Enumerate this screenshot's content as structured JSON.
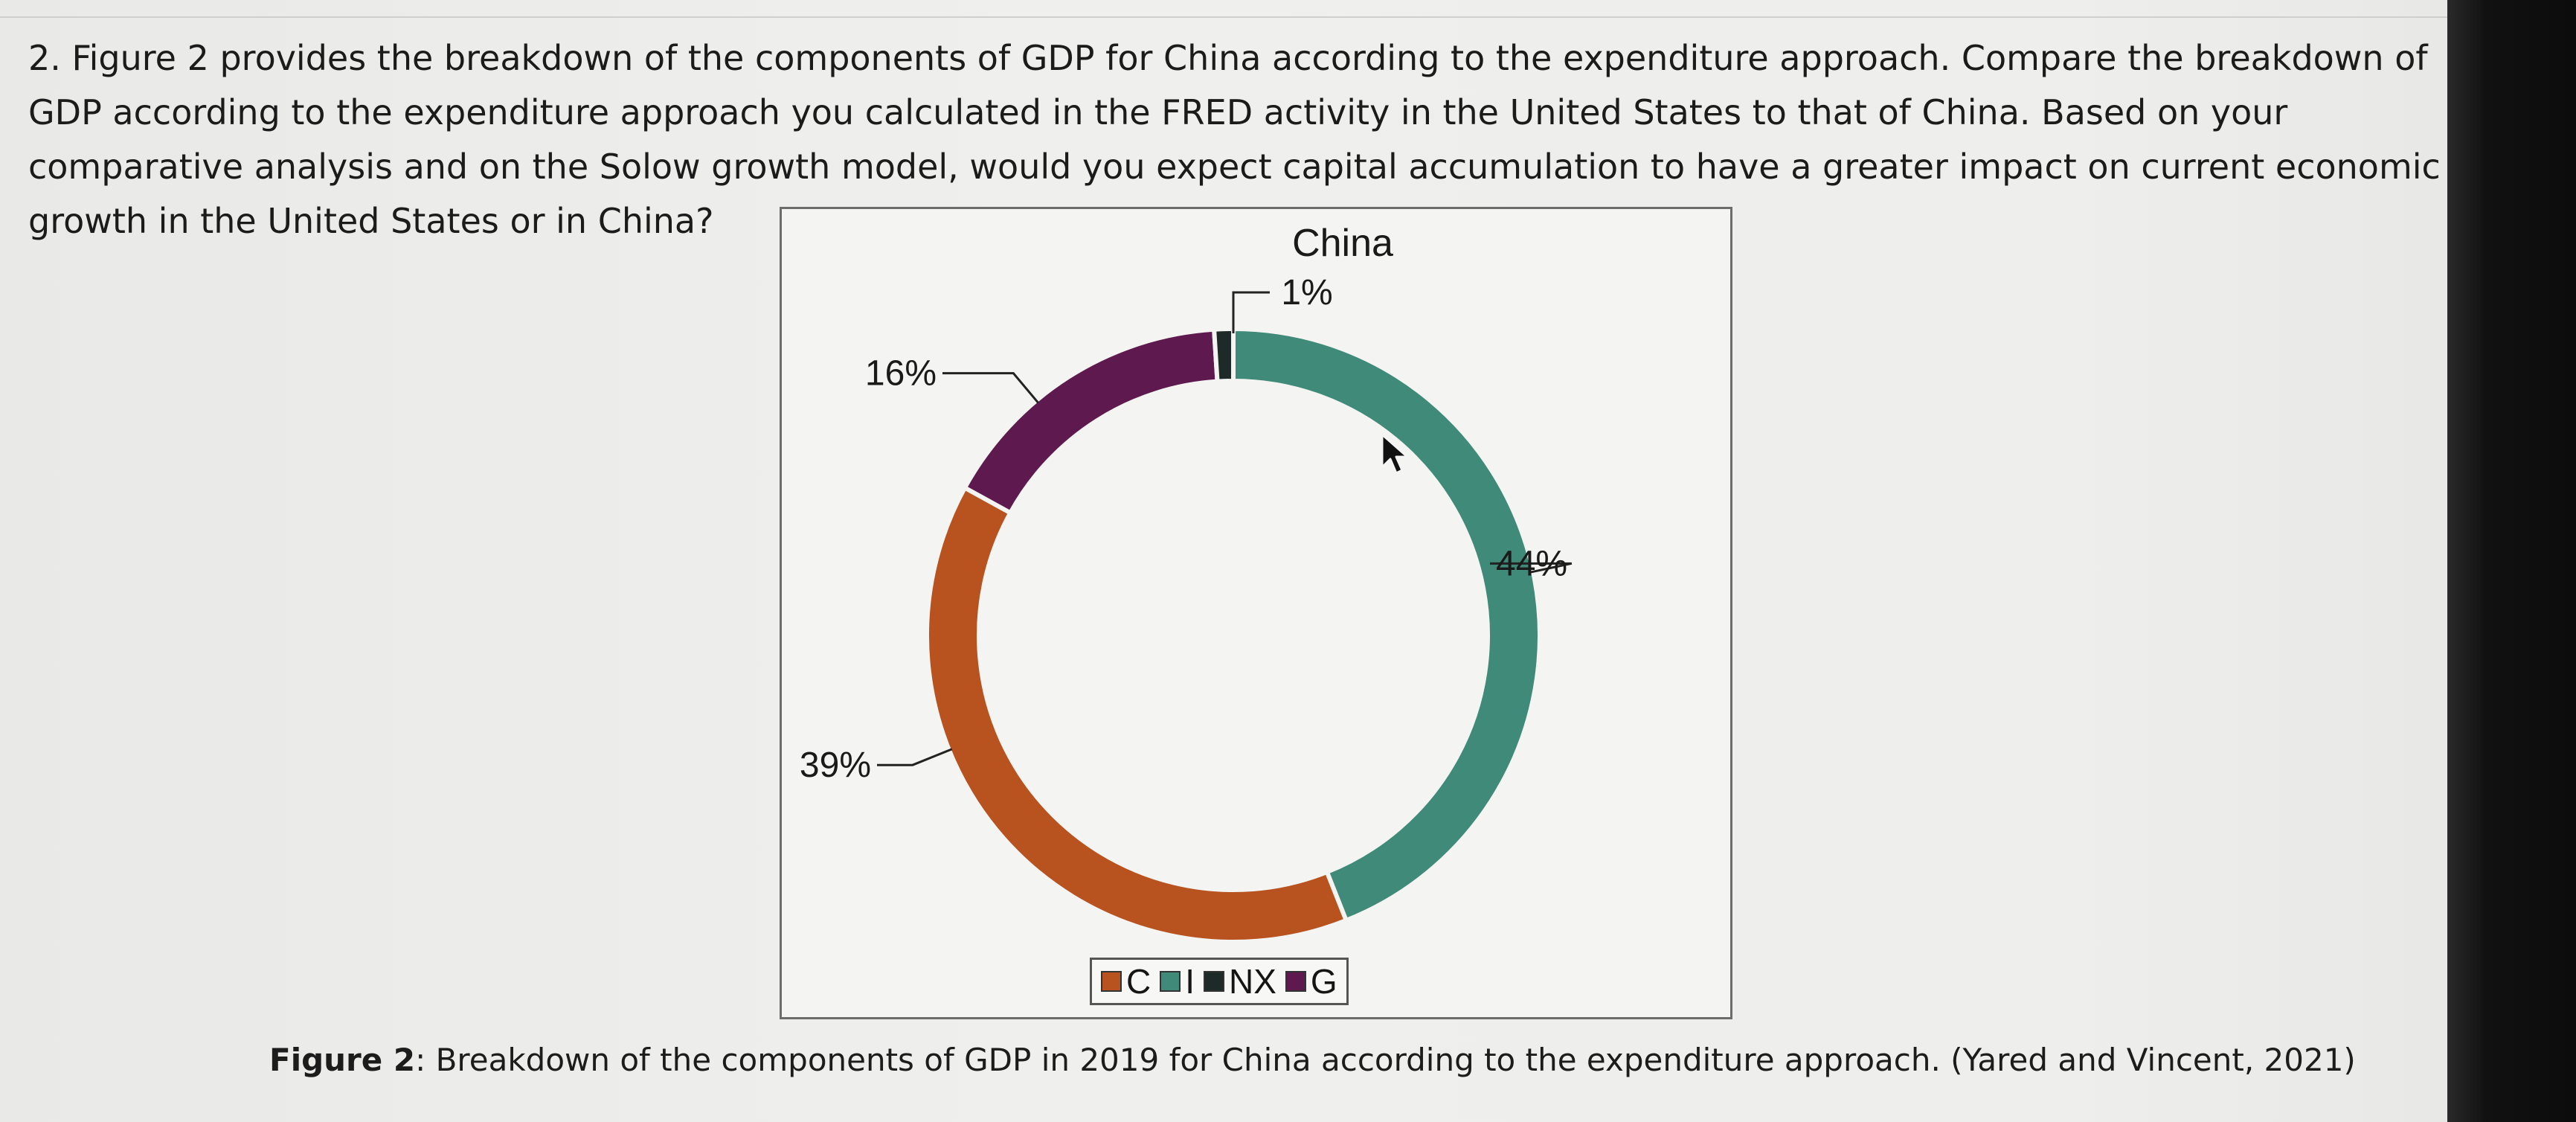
{
  "question": {
    "text": "2. Figure 2 provides the breakdown of the components of GDP for China according to the expenditure approach. Compare the breakdown of GDP according to the expenditure approach you calculated in the FRED activity in the United States to that of China. Based on your comparative analysis and on the Solow growth model, would you expect capital accumulation to have a greater impact on current economic growth in the United States or in China?"
  },
  "caption": {
    "label": "Figure 2",
    "text": ": Breakdown of the components of GDP in 2019 for China according to the expenditure approach. (Yared and Vincent, 2021)"
  },
  "chart_data": {
    "type": "pie",
    "style": "donut",
    "title": "China",
    "categories": [
      "C",
      "I",
      "NX",
      "G"
    ],
    "values": [
      39,
      44,
      1,
      16
    ],
    "labels": [
      "39%",
      "44%",
      "1%",
      "16%"
    ],
    "colors": [
      "#b8521e",
      "#3f8a78",
      "#1e2a28",
      "#5e1a4e"
    ],
    "legend_position": "bottom"
  },
  "colors": {
    "frame_border": "#6c6c6c",
    "bezel": "#0c0c0c"
  },
  "icons": {
    "cursor": "mouse-pointer-icon"
  }
}
